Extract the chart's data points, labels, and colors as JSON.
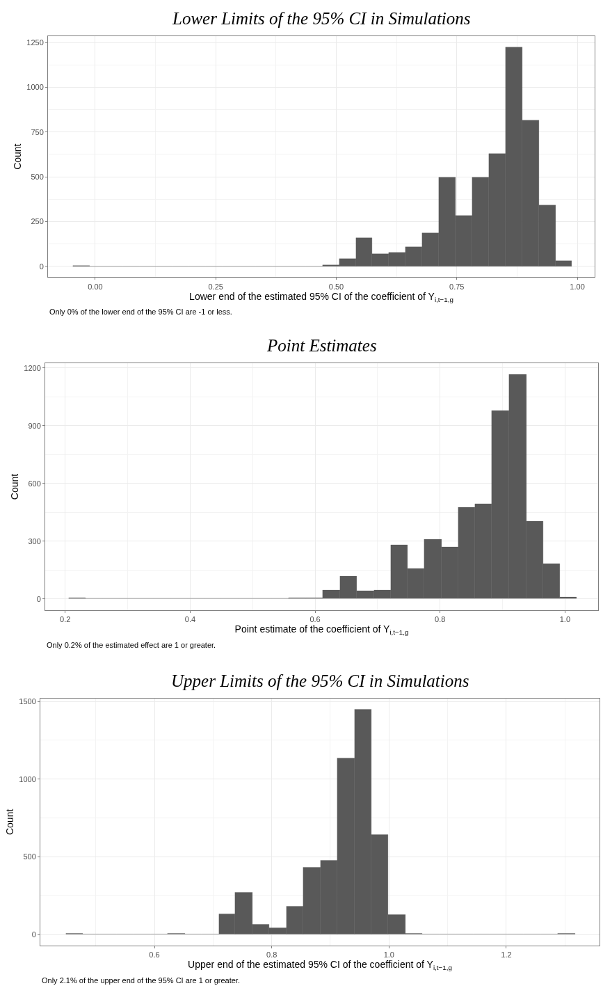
{
  "chart_data": [
    {
      "type": "histogram",
      "title": "Lower Limits of the 95% CI in Simulations",
      "xlabel": "Lower end of the estimated 95% CI of the coefficient of Y$_{i,t−1,g}$",
      "ylabel": "Count",
      "color": "#595959",
      "grid": true,
      "bins": [
        -0.046,
        -0.0115,
        0.023,
        0.0575,
        0.092,
        0.1265,
        0.161,
        0.1955,
        0.23,
        0.2645,
        0.299,
        0.3335,
        0.368,
        0.4025,
        0.437,
        0.4715,
        0.506,
        0.5405,
        0.575,
        0.6095,
        0.644,
        0.6785,
        0.713,
        0.7475,
        0.782,
        0.8165,
        0.851,
        0.8855,
        0.92,
        0.9545,
        0.989
      ],
      "values": [
        5,
        0,
        0,
        0,
        0,
        0,
        0,
        0,
        0,
        0,
        0,
        0,
        0,
        0,
        0,
        6,
        43,
        157,
        69,
        77,
        109,
        187,
        498,
        285,
        498,
        631,
        1225,
        815,
        341,
        32
      ],
      "xlim": [
        -0.098,
        1.036
      ],
      "ylim": [
        -61,
        1286
      ],
      "xticks": [
        {
          "value": 0,
          "label": "0.00"
        },
        0.25,
        {
          "value": 0.5,
          "label": "0.50"
        },
        0.75,
        {
          "value": 1,
          "label": "1.00"
        }
      ],
      "yticks": [
        0,
        250,
        500,
        750,
        1000,
        1250
      ],
      "annotations": [
        "Only 0% of the lower end of the 95% CI are -1 or less."
      ]
    },
    {
      "type": "histogram",
      "title": "Point Estimates",
      "xlabel": "Point estimate of the coefficient of Y$_{i,t−1,g}$",
      "ylabel": "Count",
      "color": "#595959",
      "grid": true,
      "bins": [
        0.206,
        0.233,
        0.26,
        0.287,
        0.314,
        0.342,
        0.369,
        0.396,
        0.423,
        0.45,
        0.477,
        0.504,
        0.531,
        0.558,
        0.585,
        0.612,
        0.64,
        0.667,
        0.694,
        0.721,
        0.748,
        0.775,
        0.802,
        0.829,
        0.856,
        0.883,
        0.91,
        0.938,
        0.965,
        0.992,
        1.019
      ],
      "values": [
        6,
        0,
        0,
        0,
        0,
        0,
        0,
        0,
        0,
        0,
        0,
        0,
        0,
        6,
        4,
        44,
        118,
        40,
        44,
        280,
        156,
        308,
        270,
        475,
        495,
        978,
        1166,
        403,
        182,
        10
      ],
      "xlim": [
        0.168,
        1.053
      ],
      "ylim": [
        -58,
        1224
      ],
      "xticks": [
        0.2,
        0.4,
        0.6,
        0.8,
        {
          "value": 1,
          "label": "1.0"
        }
      ],
      "yticks": [
        0,
        300,
        600,
        900,
        1200
      ],
      "annotations": [
        "Only 0.2% of the estimated effect are 1 or greater."
      ]
    },
    {
      "type": "histogram",
      "title": "Upper Limits of the 95% CI in Simulations",
      "xlabel": "Upper end of the estimated 95% CI of the coefficient of Y$_{i,t−1,g}$",
      "ylabel": "Count",
      "color": "#595959",
      "grid": true,
      "bins": [
        0.449,
        0.478,
        0.507,
        0.536,
        0.565,
        0.594,
        0.623,
        0.652,
        0.681,
        0.71,
        0.738,
        0.767,
        0.796,
        0.825,
        0.854,
        0.883,
        0.912,
        0.941,
        0.97,
        0.999,
        1.028,
        1.057,
        1.086,
        1.115,
        1.144,
        1.173,
        1.202,
        1.23,
        1.259,
        1.288,
        1.317
      ],
      "values": [
        5,
        0,
        0,
        0,
        0,
        0,
        5,
        0,
        0,
        130,
        270,
        64,
        44,
        180,
        431,
        478,
        1133,
        1448,
        643,
        128,
        7,
        0,
        0,
        0,
        0,
        0,
        0,
        0,
        0,
        7
      ],
      "xlim": [
        0.4055,
        1.359
      ],
      "ylim": [
        -72,
        1520
      ],
      "xticks": [
        0.6,
        0.8,
        {
          "value": 1,
          "label": "1.0"
        },
        1.2
      ],
      "yticks": [
        0,
        500,
        1000,
        1500
      ],
      "annotations": [
        "Only 2.1% of the upper end of the 95% CI are 1 or greater."
      ]
    }
  ]
}
